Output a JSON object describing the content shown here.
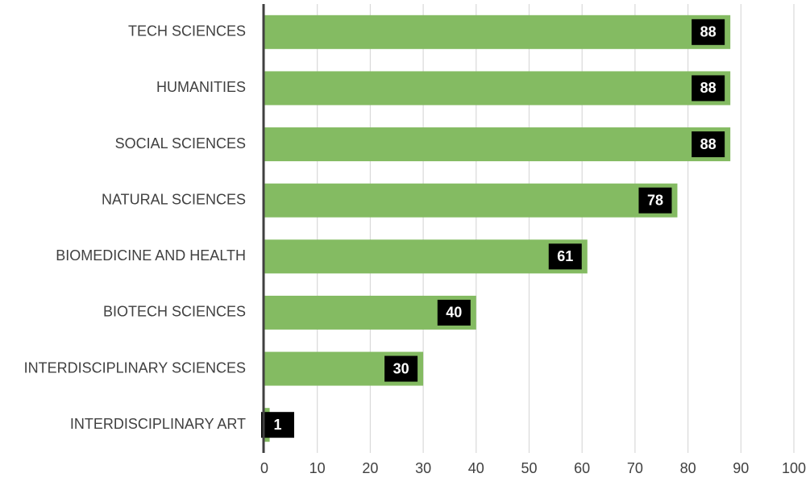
{
  "chart_data": {
    "type": "bar",
    "orientation": "horizontal",
    "categories": [
      "TECH SCIENCES",
      "HUMANITIES",
      "SOCIAL SCIENCES",
      "NATURAL SCIENCES",
      "BIOMEDICINE AND HEALTH",
      "BIOTECH SCIENCES",
      "INTERDISCIPLINARY SCIENCES",
      "INTERDISCIPLINARY ART"
    ],
    "values": [
      88,
      88,
      88,
      78,
      61,
      40,
      30,
      1
    ],
    "color": "#84bb62",
    "xlim": [
      0,
      100
    ],
    "xticks": [
      0,
      10,
      20,
      30,
      40,
      50,
      60,
      70,
      80,
      90,
      100
    ],
    "grid": true
  }
}
